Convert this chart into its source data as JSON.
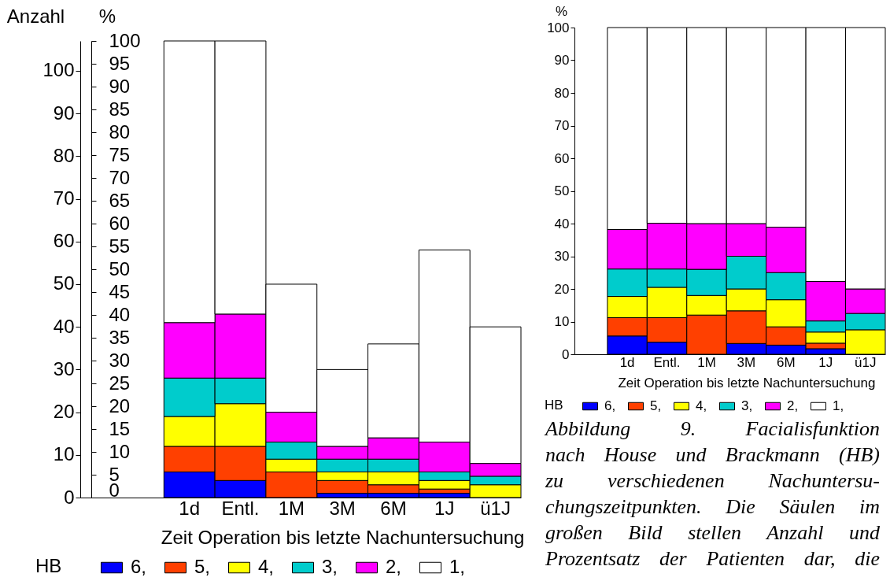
{
  "chart_data": [
    {
      "type": "bar",
      "stacked": true,
      "categories": [
        "1d",
        "Entl.",
        "1M",
        "3M",
        "6M",
        "1J",
        "ü1J"
      ],
      "series": [
        {
          "name": "6,",
          "color": "#0000ff",
          "values": [
            6,
            4,
            0,
            1,
            1,
            1,
            0
          ]
        },
        {
          "name": "5,",
          "color": "#ff4000",
          "values": [
            6,
            8,
            6,
            3,
            2,
            1,
            0
          ]
        },
        {
          "name": "4,",
          "color": "#ffff00",
          "values": [
            7,
            10,
            3,
            2,
            3,
            2,
            3
          ]
        },
        {
          "name": "3,",
          "color": "#00cccc",
          "values": [
            9,
            6,
            4,
            3,
            3,
            2,
            2
          ]
        },
        {
          "name": "2,",
          "color": "#ff00ff",
          "values": [
            13,
            15,
            7,
            3,
            5,
            7,
            3
          ]
        },
        {
          "name": "1,",
          "color": "#ffffff",
          "values": [
            66,
            64,
            30,
            18,
            22,
            45,
            32
          ]
        }
      ],
      "xlabel": "Zeit Operation bis letzte Nachuntersuchung",
      "ylabel": "Anzahl",
      "y2label": "%",
      "legend_title": "HB",
      "legend": "bottom",
      "ylim": [
        0,
        107
      ],
      "yticks": [
        0,
        10,
        20,
        30,
        40,
        50,
        60,
        70,
        80,
        90,
        100
      ],
      "y2lim": [
        0,
        100
      ],
      "y2ticks": [
        0,
        5,
        10,
        15,
        20,
        25,
        30,
        35,
        40,
        45,
        50,
        55,
        60,
        65,
        70,
        75,
        80,
        85,
        90,
        95,
        100
      ]
    },
    {
      "type": "bar",
      "stacked": true,
      "categories": [
        "1d",
        "Entl.",
        "1M",
        "3M",
        "6M",
        "1J",
        "ü1J"
      ],
      "series": [
        {
          "name": "6,",
          "color": "#0000ff",
          "values": [
            5.6,
            3.7,
            0,
            3.3,
            2.8,
            1.7,
            0
          ]
        },
        {
          "name": "5,",
          "color": "#ff4000",
          "values": [
            5.6,
            7.5,
            12,
            10,
            5.6,
            1.7,
            0
          ]
        },
        {
          "name": "4,",
          "color": "#ffff00",
          "values": [
            6.5,
            9.3,
            6,
            6.7,
            8.3,
            3.4,
            7.5
          ]
        },
        {
          "name": "3,",
          "color": "#00cccc",
          "values": [
            8.4,
            5.6,
            8,
            10,
            8.3,
            3.4,
            5
          ]
        },
        {
          "name": "2,",
          "color": "#ff00ff",
          "values": [
            12.1,
            14,
            14,
            10,
            13.9,
            12.1,
            7.5
          ]
        },
        {
          "name": "1,",
          "color": "#ffffff",
          "values": [
            61.8,
            59.9,
            60,
            60,
            61.1,
            77.7,
            80
          ]
        }
      ],
      "xlabel": "Zeit Operation bis letzte Nachuntersuchung",
      "ylabel": "%",
      "legend_title": "HB",
      "legend": "bottom",
      "ylim": [
        0,
        100
      ],
      "yticks": [
        0,
        10,
        20,
        30,
        40,
        50,
        60,
        70,
        80,
        90,
        100
      ],
      "annotations": [
        "Abbildung 9. Facialisfunktion\nnach House und Brackmann (HB)\nzu verschiedenen Nachuntersu-\nchungszeitpunkten. Die Säulen im\ngroßen Bild stellen Anzahl und\nProzentsatz der Patienten dar, die"
      ]
    }
  ]
}
